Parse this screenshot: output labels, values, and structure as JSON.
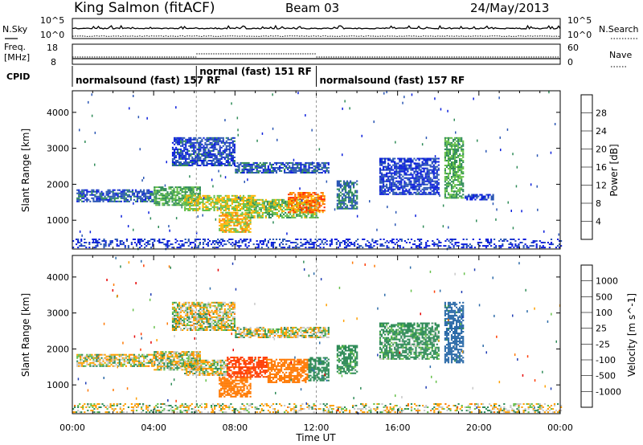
{
  "header": {
    "station": "King Salmon (fitACF)",
    "beam": "Beam 03",
    "date": "24/May/2013"
  },
  "noise_panel": {
    "left_label": "N.Sky",
    "right_label": "N.Search",
    "left_ticks": [
      "10^5",
      "10^0"
    ],
    "right_ticks": [
      "10^5",
      "10^0"
    ]
  },
  "freq_panel": {
    "left_label_line1": "Freq.",
    "left_label_line2": "[MHz]",
    "right_label": "Nave",
    "left_ticks": [
      "18",
      "8"
    ],
    "right_ticks": [
      "60",
      "0"
    ]
  },
  "cpid_panel": {
    "label": "CPID",
    "segments": [
      {
        "start_hour": 0.0,
        "end_hour": 6.1,
        "text": "normalsound (fast) 157 RF"
      },
      {
        "start_hour": 6.1,
        "end_hour": 12.0,
        "text": "normal (fast) 151 RF"
      },
      {
        "start_hour": 12.0,
        "end_hour": 24.0,
        "text": "normalsound (fast) 157 RF"
      }
    ]
  },
  "chart_data": [
    {
      "type": "heatmap",
      "title": "",
      "xlabel": "",
      "ylabel": "Slant Range [km]",
      "xlim": [
        0,
        24
      ],
      "ylim": [
        200,
        4600
      ],
      "y_ticks": [
        "1000",
        "2000",
        "3000",
        "4000"
      ],
      "colorbar_label": "Power [dB]",
      "colorbar_ticks": [
        "4",
        "8",
        "12",
        "16",
        "20",
        "24",
        "28"
      ],
      "colorbar_colors": [
        "#0a1edc",
        "#2a56b4",
        "#2e8b57",
        "#66c04a",
        "#ffb400",
        "#ff7800",
        "#ff2a00",
        "#dc0000"
      ],
      "echo_regions": [
        {
          "t0": 0.2,
          "t1": 4.0,
          "r0": 1500,
          "r1": 1850,
          "power": 6
        },
        {
          "t0": 4.0,
          "t1": 6.3,
          "r0": 1400,
          "r1": 1900,
          "power": 12
        },
        {
          "t0": 5.5,
          "t1": 9.0,
          "r0": 1250,
          "r1": 1700,
          "power": 16
        },
        {
          "t0": 7.2,
          "t1": 8.8,
          "r0": 650,
          "r1": 1200,
          "power": 18
        },
        {
          "t0": 8.6,
          "t1": 12.1,
          "r0": 1050,
          "r1": 1550,
          "power": 14
        },
        {
          "t0": 10.6,
          "t1": 12.4,
          "r0": 1200,
          "r1": 1750,
          "power": 22
        },
        {
          "t0": 4.9,
          "t1": 8.0,
          "r0": 2500,
          "r1": 3300,
          "power": 5
        },
        {
          "t0": 8.0,
          "t1": 12.6,
          "r0": 2300,
          "r1": 2600,
          "power": 6
        },
        {
          "t0": 13.0,
          "t1": 14.0,
          "r0": 1300,
          "r1": 2100,
          "power": 8
        },
        {
          "t0": 15.1,
          "t1": 18.0,
          "r0": 1700,
          "r1": 2700,
          "power": 4
        },
        {
          "t0": 18.3,
          "t1": 19.2,
          "r0": 1600,
          "r1": 3300,
          "power": 12
        },
        {
          "t0": 19.3,
          "t1": 20.7,
          "r0": 1550,
          "r1": 1700,
          "power": 3
        },
        {
          "t0": 0.0,
          "t1": 24.0,
          "r0": 220,
          "r1": 480,
          "power": 3
        }
      ]
    },
    {
      "type": "heatmap",
      "title": "",
      "xlabel": "Time UT",
      "ylabel": "Slant Range [km]",
      "xlim": [
        0,
        24
      ],
      "ylim": [
        200,
        4600
      ],
      "x_ticks": [
        "00:00",
        "04:00",
        "08:00",
        "12:00",
        "16:00",
        "20:00",
        "00:00"
      ],
      "y_ticks": [
        "1000",
        "2000",
        "3000",
        "4000"
      ],
      "colorbar_label": "Velocity [m s^-1]",
      "colorbar_ticks": [
        "1000",
        "500",
        "100",
        "25",
        "-25",
        "-100",
        "-500",
        "-1000"
      ],
      "colorbar_colors": [
        "#1e3cb4",
        "#2b6aa8",
        "#2e8b57",
        "#66c04a",
        "#c8c8c8",
        "#ffa000",
        "#ff7800",
        "#ff3c00",
        "#e60000"
      ],
      "echo_regions": [
        {
          "t0": 0.2,
          "t1": 4.0,
          "r0": 1500,
          "r1": 1850,
          "velocity": 0
        },
        {
          "t0": 4.0,
          "t1": 6.3,
          "r0": 1400,
          "r1": 1900,
          "velocity": 0
        },
        {
          "t0": 5.5,
          "t1": 7.6,
          "r0": 1250,
          "r1": 1700,
          "velocity": 0
        },
        {
          "t0": 7.2,
          "t1": 8.8,
          "r0": 650,
          "r1": 1200,
          "velocity": -300
        },
        {
          "t0": 7.6,
          "t1": 9.6,
          "r0": 1200,
          "r1": 1750,
          "velocity": -600
        },
        {
          "t0": 9.6,
          "t1": 11.6,
          "r0": 1050,
          "r1": 1700,
          "velocity": -250
        },
        {
          "t0": 11.6,
          "t1": 12.6,
          "r0": 1100,
          "r1": 1750,
          "velocity": 200
        },
        {
          "t0": 4.9,
          "t1": 8.0,
          "r0": 2500,
          "r1": 3300,
          "velocity": 0
        },
        {
          "t0": 8.0,
          "t1": 12.6,
          "r0": 2300,
          "r1": 2600,
          "velocity": 0
        },
        {
          "t0": 13.0,
          "t1": 14.0,
          "r0": 1300,
          "r1": 2100,
          "velocity": 150
        },
        {
          "t0": 15.1,
          "t1": 18.0,
          "r0": 1700,
          "r1": 2700,
          "velocity": 120
        },
        {
          "t0": 18.3,
          "t1": 19.2,
          "r0": 1600,
          "r1": 3300,
          "velocity": 400
        },
        {
          "t0": 0.0,
          "t1": 24.0,
          "r0": 220,
          "r1": 480,
          "velocity": 0
        }
      ]
    }
  ]
}
